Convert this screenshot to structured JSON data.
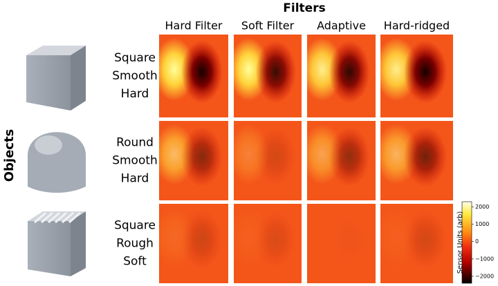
{
  "title": "Filters",
  "columns": [
    "Hard Filter",
    "Soft Filter",
    "Adaptive",
    "Hard-ridged"
  ],
  "row_axis_label": "Objects",
  "rows": [
    [
      "Square",
      "Smooth",
      "Hard"
    ],
    [
      "Round",
      "Smooth",
      "Hard"
    ],
    [
      "Square",
      "Rough",
      "Soft"
    ]
  ],
  "colorbar": {
    "label": "Sensor Units (arb)",
    "lim": [
      -2400,
      2300
    ],
    "ticks": [
      2000,
      1000,
      0,
      {
        "value": -1000,
        "label": "−1000"
      },
      {
        "value": -2000,
        "label": "−2000"
      }
    ]
  }
}
